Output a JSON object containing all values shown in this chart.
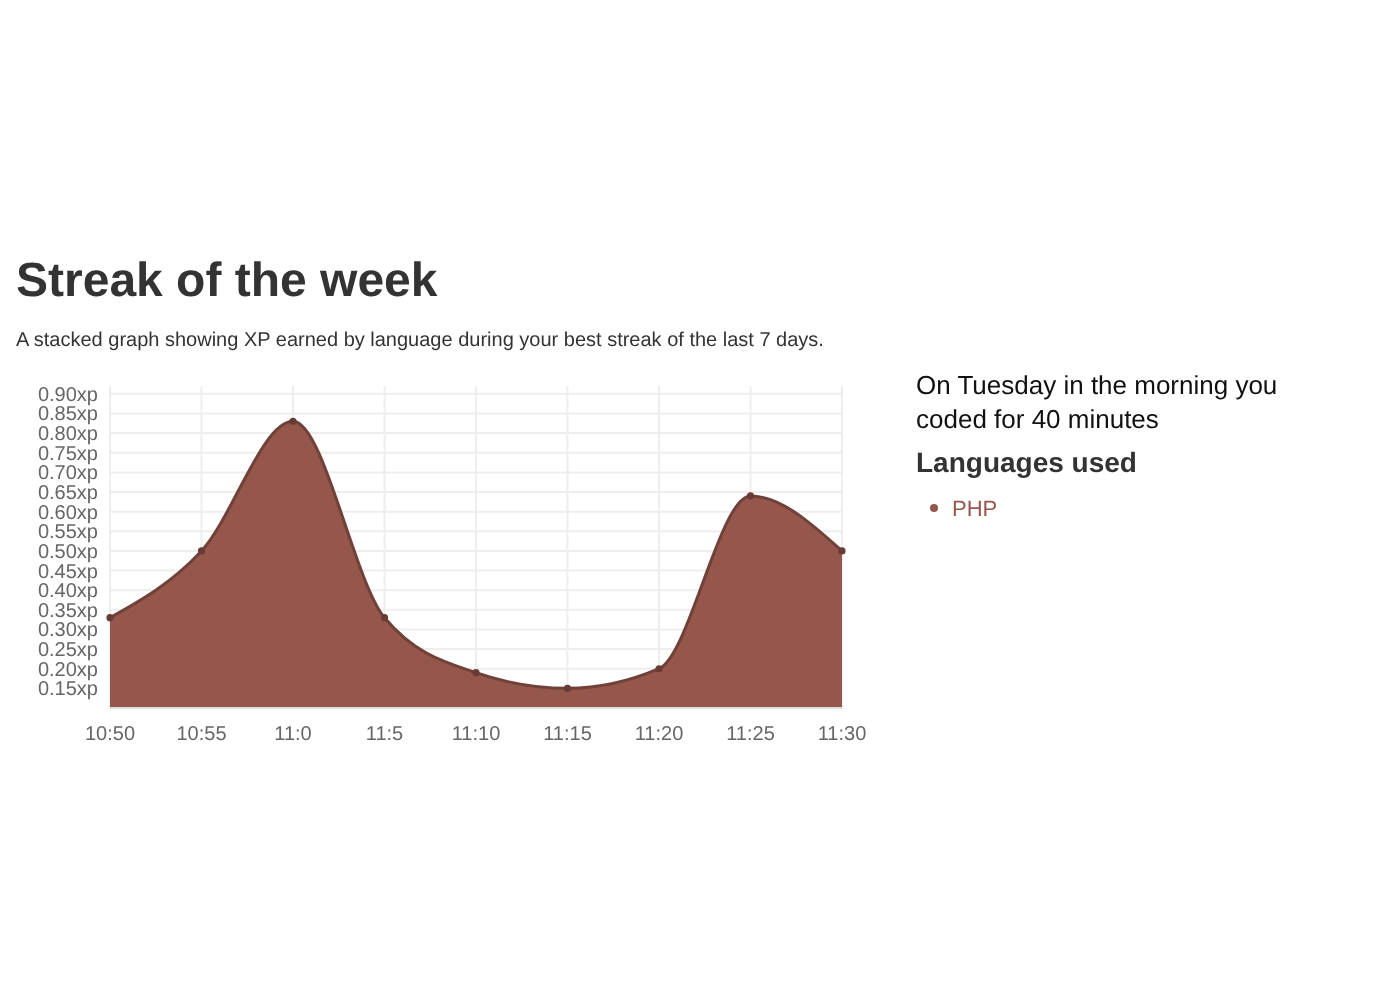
{
  "chart_data": {
    "type": "area",
    "title": "Streak of the week",
    "subtitle": "A stacked graph showing XP earned by language during your best streak of the last 7 days.",
    "categories": [
      "10:50",
      "10:55",
      "11:0",
      "11:5",
      "11:10",
      "11:15",
      "11:20",
      "11:25",
      "11:30"
    ],
    "series": [
      {
        "name": "PHP",
        "color": "#95564b",
        "values": [
          0.33,
          0.5,
          0.83,
          0.33,
          0.19,
          0.15,
          0.2,
          0.64,
          0.5
        ]
      }
    ],
    "ylim": [
      0.1,
      0.92
    ],
    "yticks": [
      {
        "value": 0.15,
        "label": "0.15xp"
      },
      {
        "value": 0.2,
        "label": "0.20xp"
      },
      {
        "value": 0.25,
        "label": "0.25xp"
      },
      {
        "value": 0.3,
        "label": "0.30xp"
      },
      {
        "value": 0.35,
        "label": "0.35xp"
      },
      {
        "value": 0.4,
        "label": "0.40xp"
      },
      {
        "value": 0.45,
        "label": "0.45xp"
      },
      {
        "value": 0.5,
        "label": "0.50xp"
      },
      {
        "value": 0.55,
        "label": "0.55xp"
      },
      {
        "value": 0.6,
        "label": "0.60xp"
      },
      {
        "value": 0.65,
        "label": "0.65xp"
      },
      {
        "value": 0.7,
        "label": "0.70xp"
      },
      {
        "value": 0.75,
        "label": "0.75xp"
      },
      {
        "value": 0.8,
        "label": "0.80xp"
      },
      {
        "value": 0.85,
        "label": "0.85xp"
      },
      {
        "value": 0.9,
        "label": "0.90xp"
      }
    ],
    "grid": true,
    "marker": "circle",
    "legend": "right",
    "legend_title": "Languages used",
    "annotations": [
      "On Tuesday in the morning you coded for 40 minutes"
    ]
  }
}
